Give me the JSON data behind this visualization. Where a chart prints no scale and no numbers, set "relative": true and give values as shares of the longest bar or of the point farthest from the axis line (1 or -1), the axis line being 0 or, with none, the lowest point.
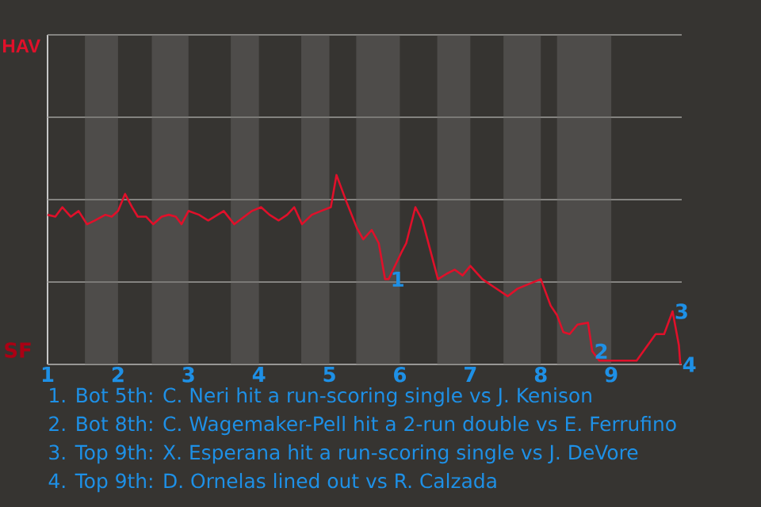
{
  "chart_data": {
    "type": "line",
    "relative": true,
    "x": [
      1,
      1.11,
      1.21,
      1.33,
      1.44,
      1.56,
      1.67,
      1.82,
      1.91,
      2,
      2.1,
      2.2,
      2.28,
      2.4,
      2.5,
      2.62,
      2.72,
      2.82,
      2.9,
      3,
      3.15,
      3.28,
      3.5,
      3.65,
      3.9,
      4.03,
      4.15,
      4.28,
      4.4,
      4.5,
      4.61,
      4.75,
      4.88,
      5.02,
      5.1,
      5.24,
      5.39,
      5.48,
      5.6,
      5.7,
      5.79,
      5.84,
      6.02,
      6.09,
      6.22,
      6.32,
      6.54,
      6.67,
      6.78,
      6.89,
      7,
      7.17,
      7.33,
      7.53,
      7.67,
      8,
      8.14,
      8.23,
      8.32,
      8.41,
      8.52,
      8.67,
      8.73,
      8.83,
      9,
      9.17,
      9.36,
      9.63,
      9.75,
      9.87,
      9.96,
      9.98
    ],
    "series": [
      {
        "color": "#e0102a",
        "values": [
          0.79,
          0.78,
          0.83,
          0.78,
          0.81,
          0.74,
          0.76,
          0.79,
          0.78,
          0.81,
          0.9,
          0.83,
          0.78,
          0.78,
          0.74,
          0.78,
          0.79,
          0.78,
          0.74,
          0.81,
          0.79,
          0.76,
          0.81,
          0.74,
          0.81,
          0.83,
          0.79,
          0.76,
          0.79,
          0.83,
          0.74,
          0.79,
          0.81,
          0.83,
          1,
          0.86,
          0.72,
          0.66,
          0.71,
          0.64,
          0.45,
          0.45,
          0.59,
          0.64,
          0.83,
          0.76,
          0.45,
          0.48,
          0.5,
          0.47,
          0.52,
          0.45,
          0.41,
          0.36,
          0.4,
          0.45,
          0.31,
          0.26,
          0.17,
          0.16,
          0.21,
          0.22,
          0.07,
          0.02,
          0.02,
          0.02,
          0.02,
          0.16,
          0.16,
          0.28,
          0.1,
          0
        ]
      }
    ],
    "xlim": [
      1,
      10
    ],
    "xticks": [
      1,
      2,
      3,
      4,
      5,
      6,
      7,
      8,
      9
    ],
    "grid": "y",
    "bands": [
      {
        "axis": "x",
        "from": 1.53,
        "to": 2,
        "color": "#4e4c4a"
      },
      {
        "axis": "x",
        "from": 2.48,
        "to": 3,
        "color": "#4e4c4a"
      },
      {
        "axis": "x",
        "from": 3.6,
        "to": 4,
        "color": "#4e4c4a"
      },
      {
        "axis": "x",
        "from": 4.6,
        "to": 5,
        "color": "#4e4c4a"
      },
      {
        "axis": "x",
        "from": 5.38,
        "to": 6,
        "color": "#4e4c4a"
      },
      {
        "axis": "x",
        "from": 6.53,
        "to": 7,
        "color": "#4e4c4a"
      },
      {
        "axis": "x",
        "from": 7.47,
        "to": 8,
        "color": "#4e4c4a"
      },
      {
        "axis": "x",
        "from": 8.23,
        "to": 9,
        "color": "#4e4c4a"
      }
    ],
    "annotations": [
      {
        "text": "1",
        "x": 5.84,
        "y": 0.45
      },
      {
        "text": "2",
        "x": 8.73,
        "y": 0.07
      },
      {
        "text": "3",
        "x": 9.87,
        "y": 0.28
      },
      {
        "text": "4",
        "x": 9.98,
        "y": 0
      },
      "HAV",
      "SF",
      "1. Bot 5th: C. Neri hit a run-scoring single vs J. Kenison",
      "2. Bot 8th: C. Wagemaker-Pell hit a 2-run double vs E. Ferrufino",
      "3. Top 9th: X. Esperana hit a run-scoring single vs J. DeVore",
      "4. Top 9th: D. Ornelas lined out vs R. Calzada"
    ]
  }
}
